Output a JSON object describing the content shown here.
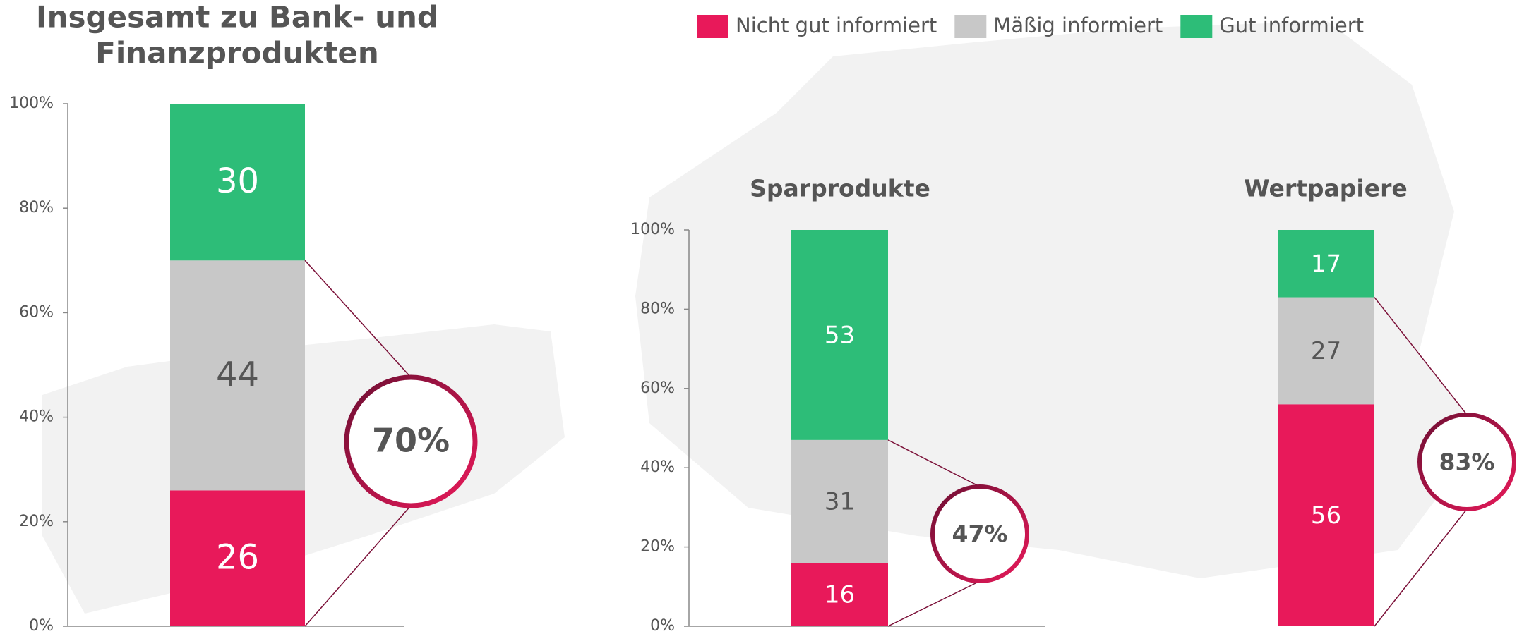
{
  "legend_series": [
    0,
    1,
    2
  ],
  "chart_data": [
    {
      "type": "stacked_bar",
      "title": [
        "Insgesamt zu Bank- und",
        "Finanzprodukten"
      ],
      "ylim": [
        0,
        100
      ],
      "yticks": [
        {
          "value": 0,
          "label": "0%"
        },
        {
          "value": 20,
          "label": "20%"
        },
        {
          "value": 40,
          "label": "40%"
        },
        {
          "value": 60,
          "label": "60%"
        },
        {
          "value": 80,
          "label": "80%"
        },
        {
          "value": 100,
          "label": "100%"
        }
      ],
      "series": [
        {
          "name": "Nicht gut informiert",
          "color": "#e8195a",
          "values": [
            26
          ]
        },
        {
          "name": "Mäßig informiert",
          "color": "#c8c8c8",
          "values": [
            44
          ]
        },
        {
          "name": "Gut informiert",
          "color": "#2dbd78",
          "values": [
            30
          ]
        }
      ],
      "callout": {
        "value": 70,
        "label": "70%"
      }
    },
    {
      "type": "stacked_bar",
      "title": [
        "Sparprodukte"
      ],
      "ylim": [
        0,
        100
      ],
      "yticks": [
        {
          "value": 0,
          "label": "0%"
        },
        {
          "value": 20,
          "label": "20%"
        },
        {
          "value": 40,
          "label": "40%"
        },
        {
          "value": 60,
          "label": "60%"
        },
        {
          "value": 80,
          "label": "80%"
        },
        {
          "value": 100,
          "label": "100%"
        }
      ],
      "series": [
        {
          "color": "#e8195a",
          "values": [
            16
          ]
        },
        {
          "color": "#c8c8c8",
          "values": [
            31
          ]
        },
        {
          "color": "#2dbd78",
          "values": [
            53
          ]
        }
      ],
      "callout": {
        "value": 47,
        "label": "47%"
      }
    },
    {
      "type": "stacked_bar",
      "title": [
        "Wertpapiere"
      ],
      "ylim": [
        0,
        100
      ],
      "series": [
        {
          "color": "#e8195a",
          "values": [
            56
          ]
        },
        {
          "color": "#c8c8c8",
          "values": [
            27
          ]
        },
        {
          "color": "#2dbd78",
          "values": [
            17
          ]
        }
      ],
      "callout": {
        "value": 83,
        "label": "83%"
      }
    }
  ]
}
